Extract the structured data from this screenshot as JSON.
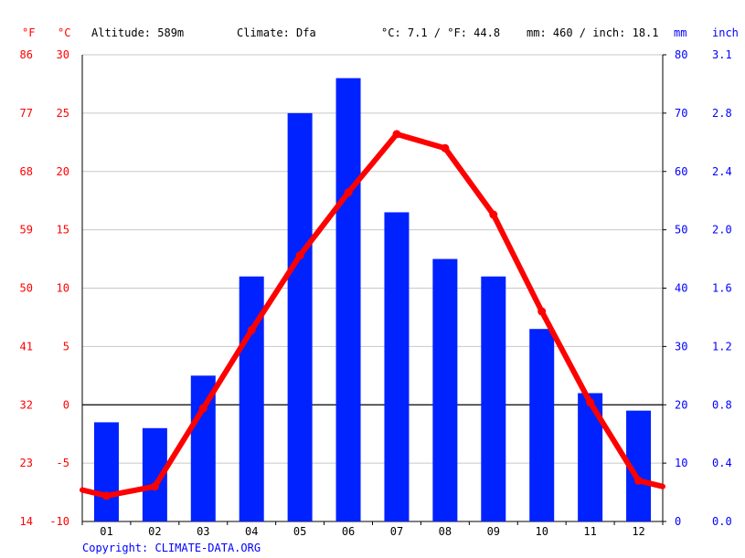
{
  "header": {
    "unit_f": "°F",
    "unit_c": "°C",
    "altitude": "Altitude: 589m",
    "climate": "Climate: Dfa",
    "avg_temp": "°C: 7.1 / °F: 44.8",
    "avg_precip": "mm: 460 / inch: 18.1",
    "unit_mm": "mm",
    "unit_inch": "inch"
  },
  "footer": {
    "copyright": "Copyright: CLIMATE-DATA.ORG"
  },
  "colors": {
    "temperature": "#ff0000",
    "precipitation": "#0022ff",
    "grid": "#c8c8c8",
    "zero_line": "#000000",
    "axis_text_left": "#ff0000",
    "axis_text_right": "#0000ff"
  },
  "chart_data": {
    "type": "bar+line",
    "categories": [
      "01",
      "02",
      "03",
      "04",
      "05",
      "06",
      "07",
      "08",
      "09",
      "10",
      "11",
      "12"
    ],
    "series": [
      {
        "type": "bar",
        "axis": "right",
        "unit": "mm",
        "values": [
          17,
          16,
          25,
          42,
          70,
          76,
          53,
          45,
          42,
          33,
          22,
          19
        ]
      },
      {
        "type": "line",
        "axis": "left",
        "unit": "°C",
        "values": [
          -7.8,
          -7.0,
          -0.3,
          6.4,
          12.8,
          18.2,
          23.2,
          22.0,
          16.3,
          8.0,
          0.2,
          -6.5
        ]
      }
    ],
    "line_edges": {
      "start": -7.3,
      "end": -7.0
    },
    "axes": {
      "left_c": {
        "ylim": [
          -10,
          30
        ],
        "ticks": [
          "30",
          "25",
          "20",
          "15",
          "10",
          "5",
          "0",
          "-5",
          "-10"
        ]
      },
      "left_f": {
        "ticks": [
          "86",
          "77",
          "68",
          "59",
          "50",
          "41",
          "32",
          "23",
          "14"
        ]
      },
      "right_mm": {
        "ylim": [
          0,
          80
        ],
        "ticks": [
          "80",
          "70",
          "60",
          "50",
          "40",
          "30",
          "20",
          "10",
          "0"
        ]
      },
      "right_inch": {
        "ticks": [
          "3.1",
          "2.8",
          "2.4",
          "2.0",
          "1.6",
          "1.2",
          "0.8",
          "0.4",
          "0.0"
        ]
      }
    },
    "grid": true
  }
}
